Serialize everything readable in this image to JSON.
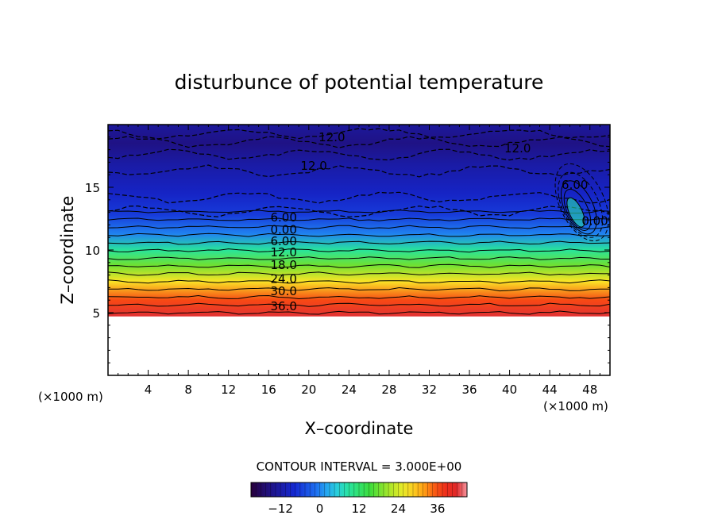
{
  "chart_data": {
    "type": "heatmap",
    "title": "disturbunce of potential temperature",
    "xlabel": "X–coordinate",
    "ylabel": "Z–coordinate",
    "x_unit_left": "(×1000 m)",
    "x_unit_right": "(×1000 m)",
    "xlim": [
      0,
      50
    ],
    "ylim": [
      0,
      20
    ],
    "x_ticks": [
      4,
      8,
      12,
      16,
      20,
      24,
      28,
      32,
      36,
      40,
      44,
      48
    ],
    "y_ticks": [
      5,
      10,
      15
    ],
    "data_bottom_z": 4.7,
    "levels": [
      {
        "z": 4.7,
        "value": 42
      },
      {
        "z": 6.0,
        "value": 36
      },
      {
        "z": 7.5,
        "value": 27
      },
      {
        "z": 8.8,
        "value": 18
      },
      {
        "z": 10.0,
        "value": 9
      },
      {
        "z": 11.3,
        "value": 0
      },
      {
        "z": 12.8,
        "value": -6
      },
      {
        "z": 14.5,
        "value": -9
      },
      {
        "z": 16.8,
        "value": -12
      },
      {
        "z": 18.5,
        "value": -15
      },
      {
        "z": 20.0,
        "value": -13
      }
    ],
    "contour_labels": [
      {
        "x": 17.5,
        "z": 12.6,
        "text": "6.00"
      },
      {
        "x": 17.5,
        "z": 11.6,
        "text": "0.00"
      },
      {
        "x": 17.5,
        "z": 10.7,
        "text": "6.00"
      },
      {
        "x": 17.5,
        "z": 9.8,
        "text": "12.0"
      },
      {
        "x": 17.5,
        "z": 8.8,
        "text": "18.0"
      },
      {
        "x": 17.5,
        "z": 7.7,
        "text": "24.0"
      },
      {
        "x": 17.5,
        "z": 6.7,
        "text": "30.0"
      },
      {
        "x": 17.5,
        "z": 5.5,
        "text": "36.0"
      },
      {
        "x": 22.3,
        "z": 19.0,
        "text": "12.0"
      },
      {
        "x": 20.5,
        "z": 16.7,
        "text": "12.0"
      },
      {
        "x": 40.8,
        "z": 18.1,
        "text": "12.0"
      },
      {
        "x": 46.5,
        "z": 15.2,
        "text": "6.00"
      },
      {
        "x": 48.5,
        "z": 12.3,
        "text": "0.00"
      }
    ],
    "contour_interval_text": "CONTOUR INTERVAL = 3.000E+00",
    "colorbar": {
      "range": [
        -21,
        45
      ],
      "ticks": [
        -12,
        0,
        12,
        24,
        36
      ],
      "tick_labels": [
        "−12",
        "0",
        "12",
        "24",
        "36"
      ]
    }
  }
}
